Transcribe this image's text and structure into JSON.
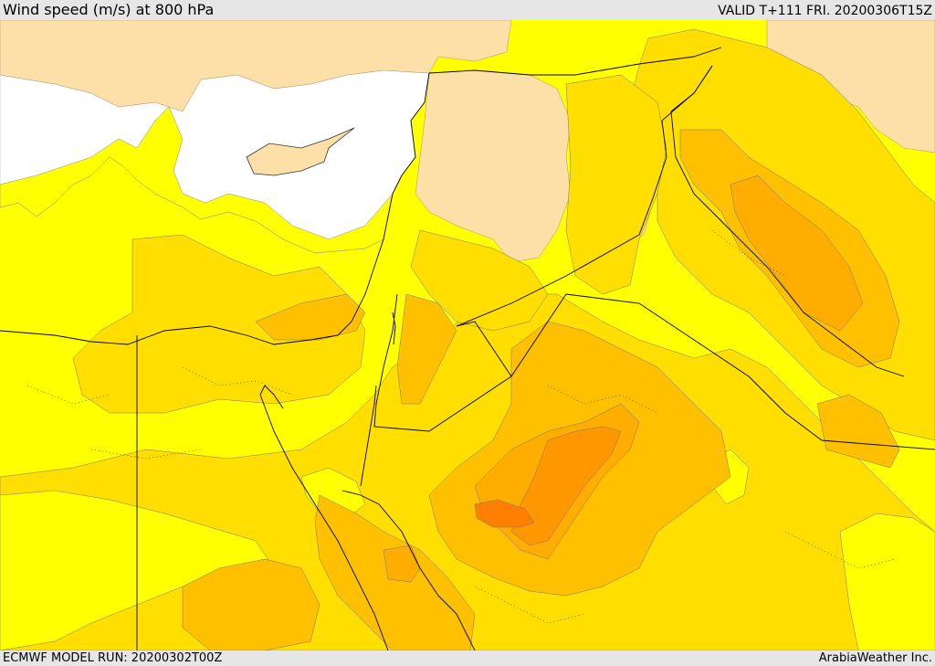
{
  "header": {
    "title": "Wind speed (m/s) at 800 hPa",
    "valid": "VALID T+111 FRI. 20200306T15Z"
  },
  "footer": {
    "model_run": "ECMWF MODEL RUN: 20200302T00Z",
    "credit": "ArabiaWeather Inc."
  },
  "colors": {
    "sea": "#ffffff",
    "land": "#fde0a8",
    "band_1": "#ffff00",
    "band_2": "#ffde00",
    "band_3": "#ffc000",
    "band_4": "#ffae00",
    "band_5": "#ff9800",
    "band_6": "#ff8000"
  }
}
